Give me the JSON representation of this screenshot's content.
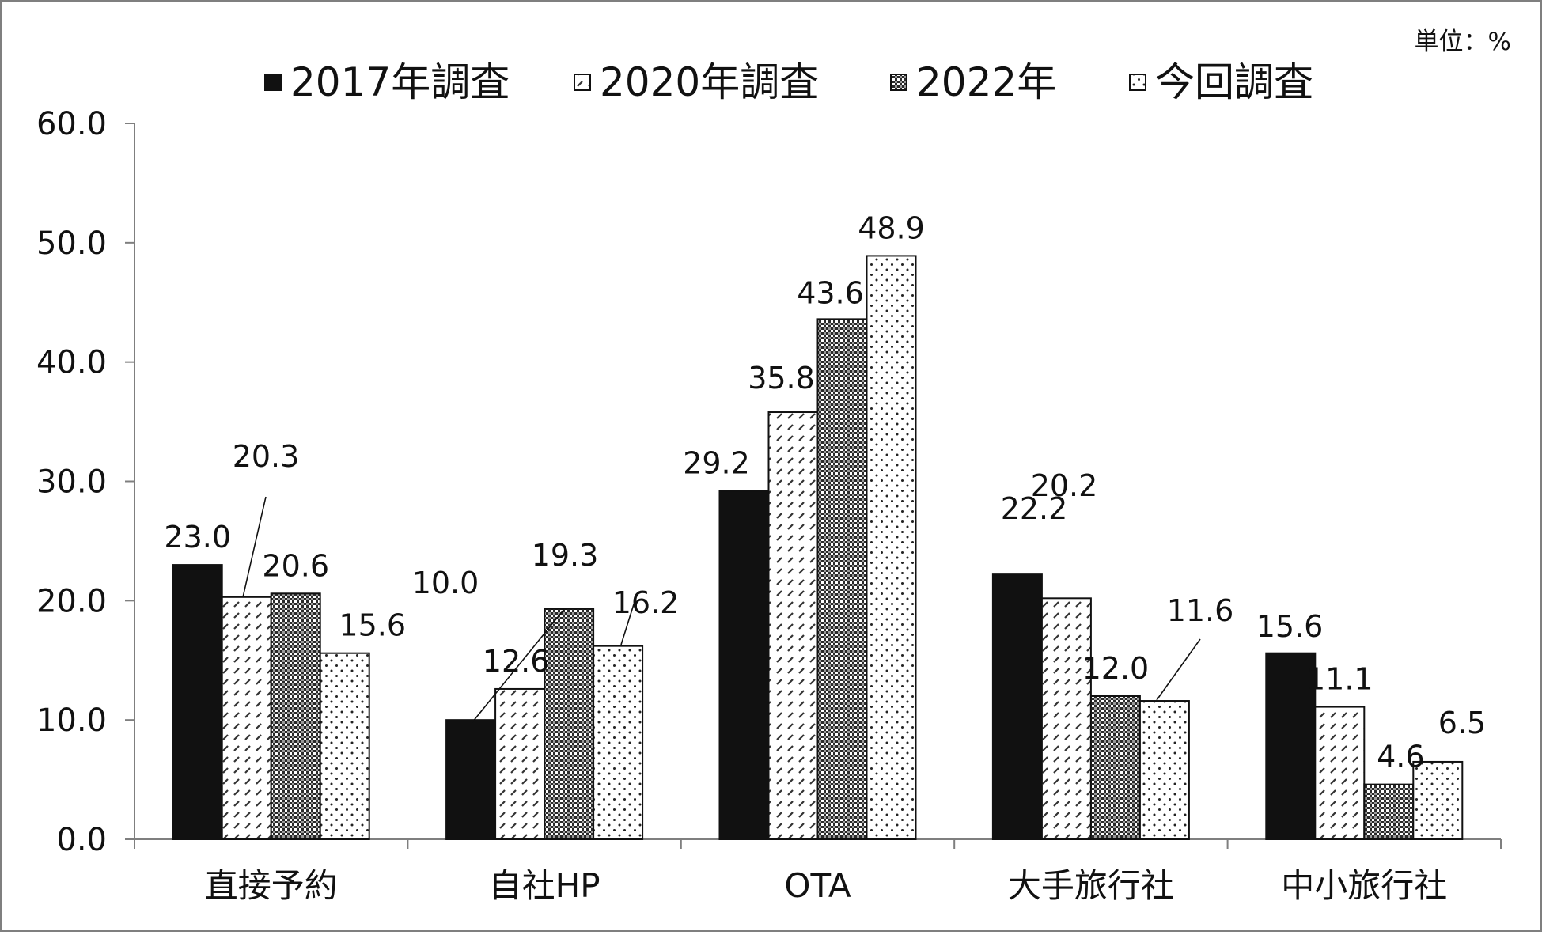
{
  "unit_label": "単位：%",
  "colors": {
    "frame": "#7f7f7f",
    "bar_outline": "#111111",
    "solid": "#111111",
    "pattern": "#333333",
    "text": "#111111"
  },
  "chart_data": {
    "type": "bar",
    "title": "",
    "xlabel": "",
    "ylabel": "",
    "categories": [
      "直接予約",
      "自社HP",
      "OTA",
      "大手旅行社",
      "中小旅行社"
    ],
    "ylim": [
      0,
      60
    ],
    "yticks": [
      "0.0",
      "10.0",
      "20.0",
      "30.0",
      "40.0",
      "50.0",
      "60.0"
    ],
    "legend_position": "top",
    "grid": false,
    "series": [
      {
        "name": "2017年調査",
        "pattern": "solid",
        "values": [
          23.0,
          10.0,
          29.2,
          22.2,
          15.6
        ],
        "labels": [
          "23.0",
          "10.0",
          "29.2",
          "22.2",
          "15.6"
        ]
      },
      {
        "name": "2020年調査",
        "pattern": "hatch",
        "values": [
          20.3,
          12.6,
          35.8,
          20.2,
          11.1
        ],
        "labels": [
          "20.3",
          "12.6",
          "35.8",
          "20.2",
          "11.1"
        ]
      },
      {
        "name": "2022年",
        "pattern": "checker",
        "values": [
          20.6,
          19.3,
          43.6,
          12.0,
          4.6
        ],
        "labels": [
          "20.6",
          "19.3",
          "43.6",
          "12.0",
          "4.6"
        ]
      },
      {
        "name": "今回調査",
        "pattern": "dots",
        "values": [
          15.6,
          16.2,
          48.9,
          11.6,
          6.5
        ],
        "labels": [
          "15.6",
          "16.2",
          "48.9",
          "11.6",
          "6.5"
        ]
      }
    ]
  }
}
